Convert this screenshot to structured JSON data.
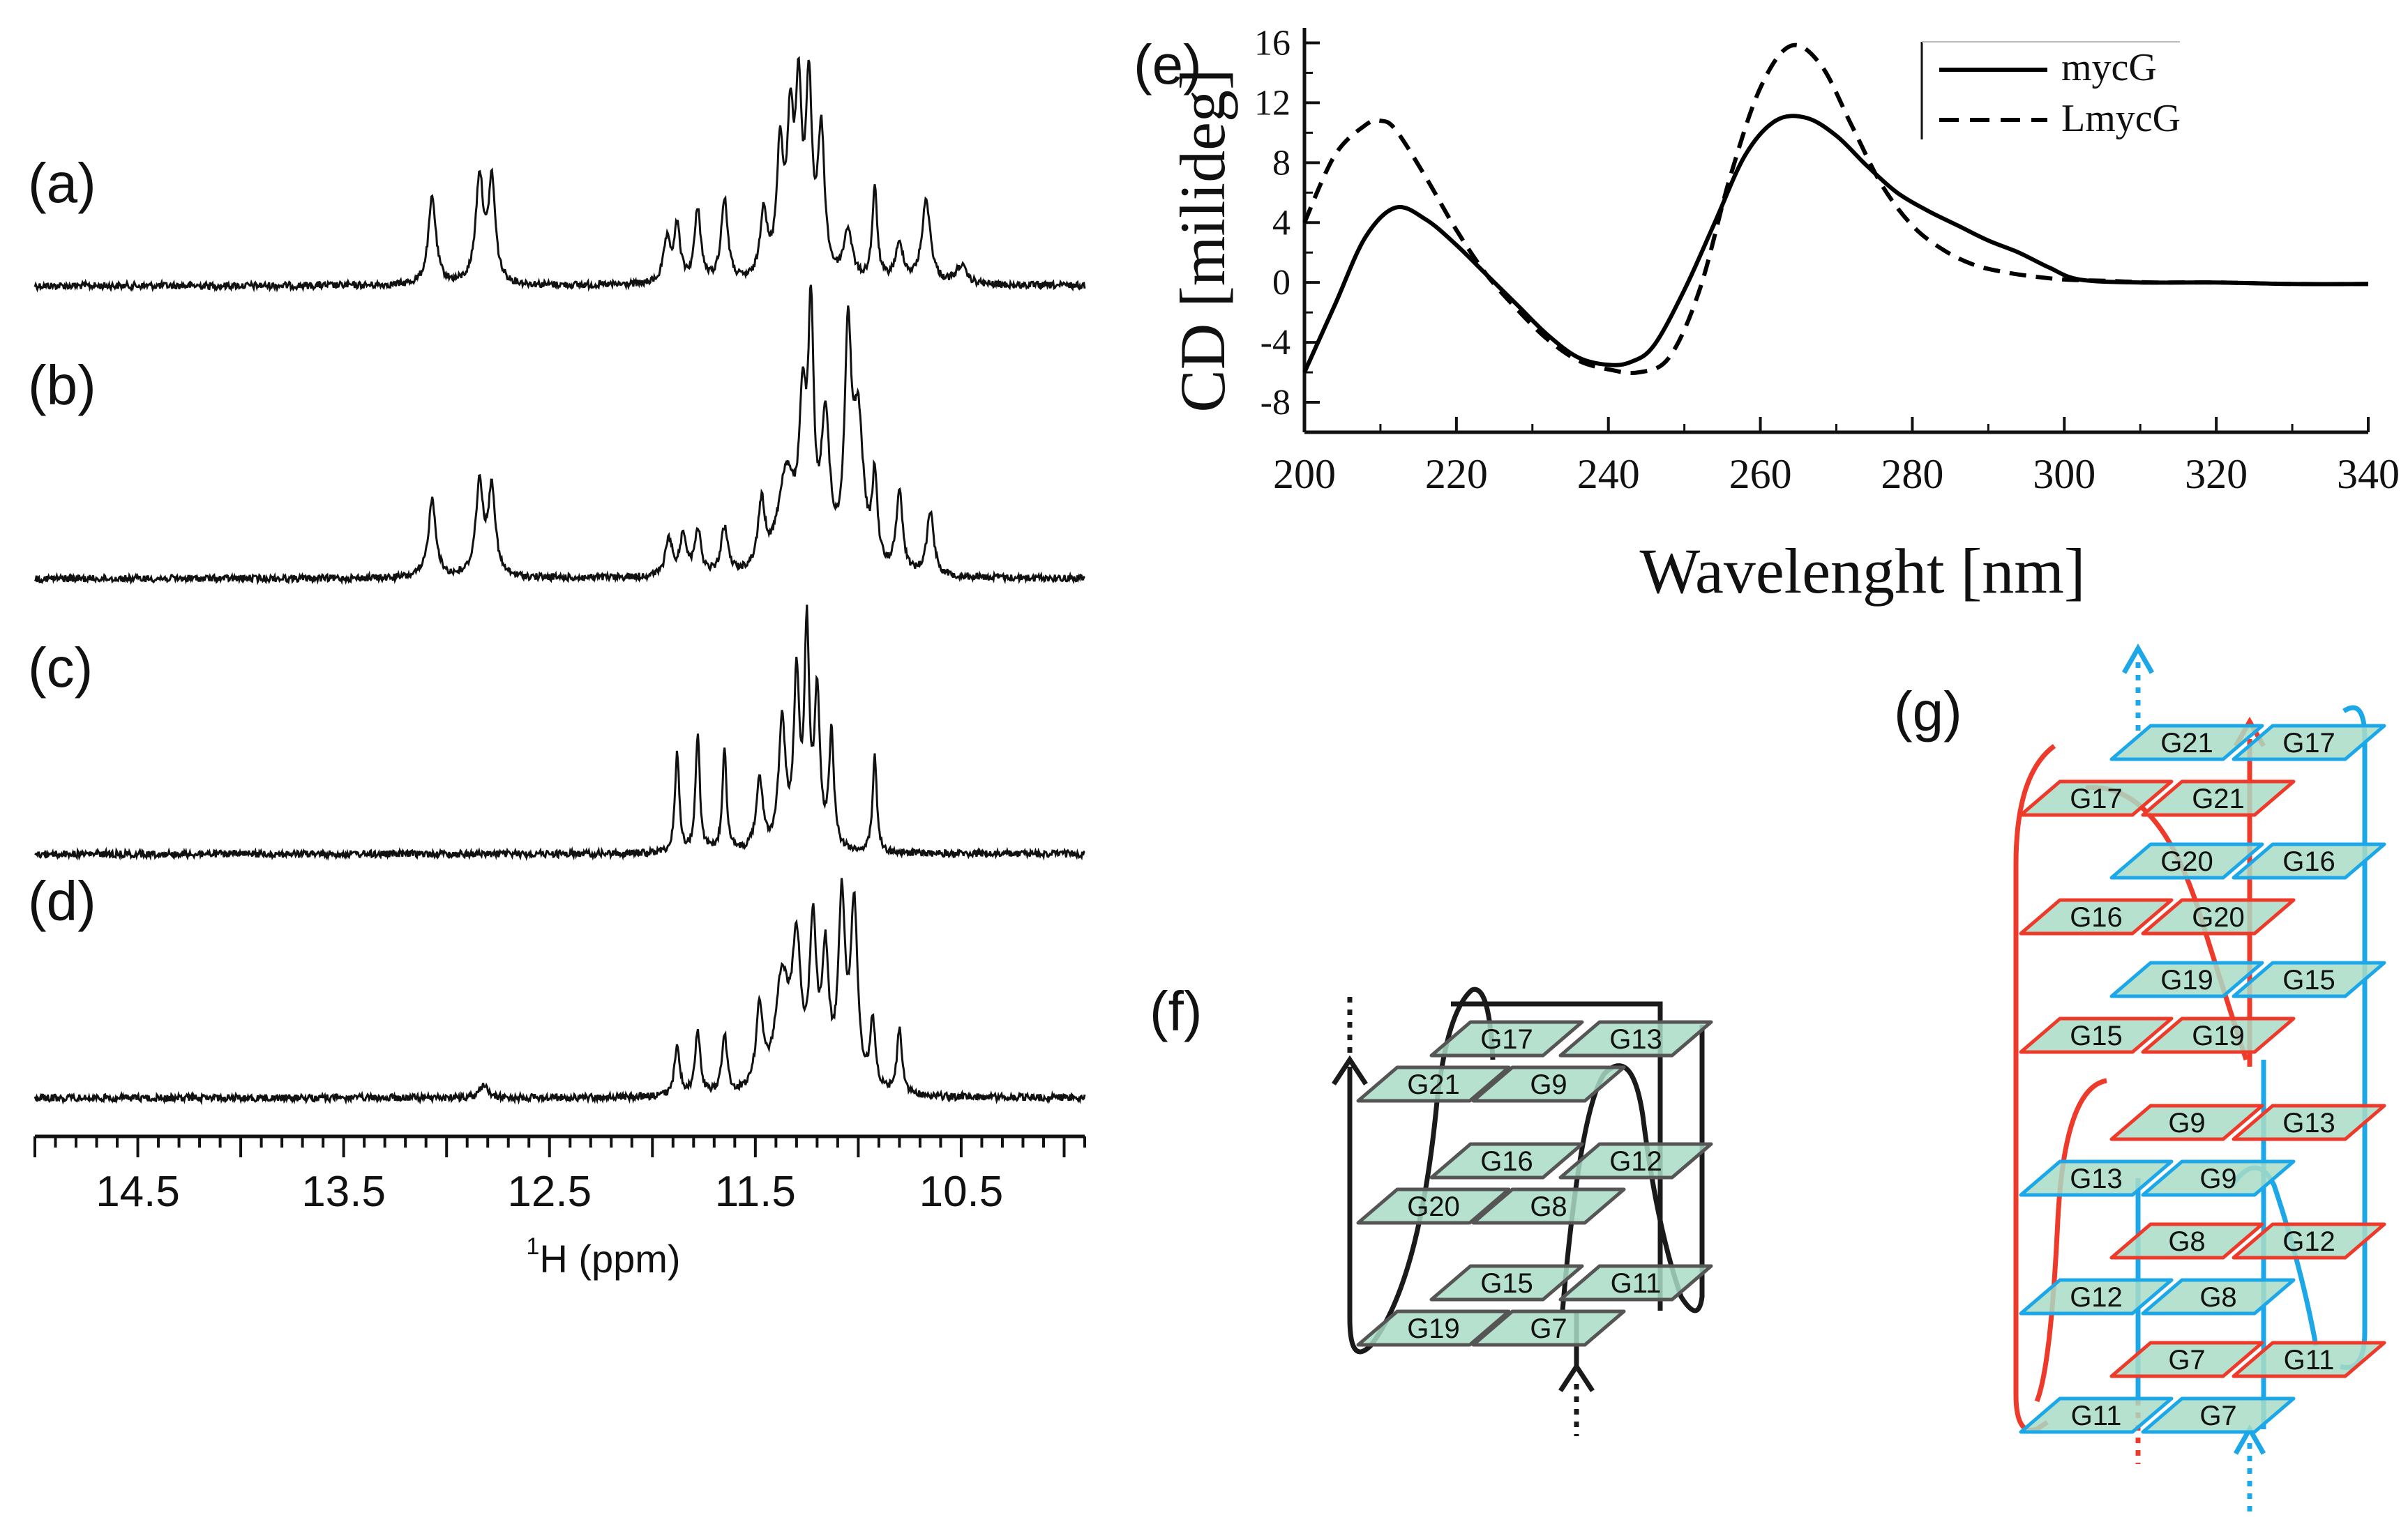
{
  "panels": {
    "a": "(a)",
    "b": "(b)",
    "c": "(c)",
    "d": "(d)",
    "e": "(e)",
    "f": "(f)",
    "g": "(g)"
  },
  "chart_data": [
    {
      "type": "line",
      "id": "nmr",
      "title": "",
      "xlabel_sup": "1",
      "xlabel": "H (ppm)",
      "xlim": [
        15.0,
        9.9
      ],
      "xticks": [
        14.5,
        13.5,
        12.5,
        11.5,
        10.5
      ],
      "x_minor_step": 0.1,
      "series": [
        {
          "name": "(a)",
          "peaks": [
            [
              13.07,
              0.38,
              0.022
            ],
            [
              12.84,
              0.46,
              0.022
            ],
            [
              12.78,
              0.44,
              0.02
            ],
            [
              11.93,
              0.18,
              0.02
            ],
            [
              11.88,
              0.24,
              0.018
            ],
            [
              11.78,
              0.32,
              0.018
            ],
            [
              11.65,
              0.36,
              0.02
            ],
            [
              11.46,
              0.3,
              0.02
            ],
            [
              11.38,
              0.55,
              0.02
            ],
            [
              11.33,
              0.62,
              0.018
            ],
            [
              11.29,
              0.74,
              0.018
            ],
            [
              11.24,
              0.8,
              0.018
            ],
            [
              11.18,
              0.62,
              0.02
            ],
            [
              11.05,
              0.22,
              0.025
            ],
            [
              10.92,
              0.4,
              0.015
            ],
            [
              10.8,
              0.16,
              0.025
            ],
            [
              10.67,
              0.36,
              0.025
            ],
            [
              10.5,
              0.08,
              0.03
            ]
          ]
        },
        {
          "name": "(b)",
          "peaks": [
            [
              13.07,
              0.34,
              0.022
            ],
            [
              12.84,
              0.4,
              0.022
            ],
            [
              12.78,
              0.38,
              0.02
            ],
            [
              11.92,
              0.16,
              0.02
            ],
            [
              11.85,
              0.18,
              0.018
            ],
            [
              11.78,
              0.2,
              0.018
            ],
            [
              11.65,
              0.2,
              0.02
            ],
            [
              11.47,
              0.28,
              0.02
            ],
            [
              11.35,
              0.42,
              0.05
            ],
            [
              11.27,
              0.62,
              0.02
            ],
            [
              11.23,
              1.0,
              0.016
            ],
            [
              11.16,
              0.62,
              0.025
            ],
            [
              11.05,
              0.95,
              0.02
            ],
            [
              11.0,
              0.62,
              0.03
            ],
            [
              10.92,
              0.38,
              0.015
            ],
            [
              10.8,
              0.36,
              0.018
            ],
            [
              10.65,
              0.28,
              0.02
            ]
          ]
        },
        {
          "name": "(c)",
          "peaks": [
            [
              11.88,
              0.44,
              0.012
            ],
            [
              11.78,
              0.52,
              0.012
            ],
            [
              11.65,
              0.46,
              0.012
            ],
            [
              11.48,
              0.3,
              0.02
            ],
            [
              11.37,
              0.55,
              0.02
            ],
            [
              11.3,
              0.72,
              0.016
            ],
            [
              11.25,
              0.92,
              0.014
            ],
            [
              11.2,
              0.66,
              0.016
            ],
            [
              11.13,
              0.5,
              0.014
            ],
            [
              10.92,
              0.42,
              0.012
            ]
          ]
        },
        {
          "name": "(d)",
          "peaks": [
            [
              12.82,
              0.06,
              0.02
            ],
            [
              11.88,
              0.22,
              0.015
            ],
            [
              11.78,
              0.28,
              0.015
            ],
            [
              11.65,
              0.26,
              0.015
            ],
            [
              11.48,
              0.35,
              0.02
            ],
            [
              11.37,
              0.48,
              0.04
            ],
            [
              11.3,
              0.58,
              0.025
            ],
            [
              11.22,
              0.68,
              0.02
            ],
            [
              11.16,
              0.55,
              0.02
            ],
            [
              11.08,
              0.8,
              0.02
            ],
            [
              11.02,
              0.78,
              0.02
            ],
            [
              10.93,
              0.3,
              0.015
            ],
            [
              10.8,
              0.28,
              0.015
            ]
          ]
        }
      ]
    },
    {
      "type": "line",
      "id": "cd",
      "title": "",
      "xlabel": "Wavelenght [nm]",
      "ylabel": "CD [milideg]",
      "xlim": [
        200,
        340
      ],
      "ylim": [
        -10,
        17
      ],
      "xticks": [
        200,
        220,
        240,
        260,
        280,
        300,
        320,
        340
      ],
      "yticks": [
        -8,
        -4,
        0,
        4,
        8,
        12,
        16
      ],
      "legend_position": "top-right",
      "series": [
        {
          "name": "mycG",
          "style": "solid",
          "x": [
            200,
            204,
            208,
            212,
            216,
            220,
            224,
            228,
            232,
            236,
            240,
            243,
            246,
            250,
            254,
            258,
            262,
            266,
            270,
            274,
            278,
            282,
            286,
            290,
            294,
            298,
            302,
            310,
            320,
            330,
            340
          ],
          "y": [
            -6,
            -1.5,
            3,
            5,
            4.2,
            2.5,
            0.5,
            -1.5,
            -3.5,
            -5,
            -5.5,
            -5.3,
            -4.2,
            -0.5,
            4,
            8.5,
            10.8,
            11,
            9.8,
            7.8,
            6,
            4.8,
            3.8,
            2.8,
            2,
            1,
            0.2,
            0,
            0,
            -0.1,
            -0.1
          ]
        },
        {
          "name": "LmycG",
          "style": "dashed",
          "x": [
            200,
            204,
            208,
            210,
            212,
            216,
            220,
            224,
            228,
            232,
            236,
            240,
            244,
            248,
            252,
            256,
            260,
            264,
            268,
            272,
            276,
            280,
            284,
            288,
            292,
            296,
            300,
            306,
            312,
            320,
            330,
            340
          ],
          "y": [
            4,
            8.5,
            10.5,
            10.8,
            10.2,
            7,
            3.5,
            0.5,
            -1.8,
            -3.8,
            -5.2,
            -5.8,
            -6,
            -5,
            -0.5,
            7,
            13,
            15.8,
            14.5,
            10.5,
            6.5,
            3.8,
            2.2,
            1.2,
            0.7,
            0.4,
            0.2,
            0.1,
            0,
            0,
            -0.1,
            -0.1
          ]
        }
      ]
    }
  ],
  "diagram_f": {
    "arrow_color": "#1a1a1a",
    "block_fill": "#a8dcc5",
    "tiers": [
      [
        "G17",
        "G13",
        "G21",
        "G9"
      ],
      [
        "G16",
        "G12",
        "G20",
        "G8"
      ],
      [
        "G15",
        "G11",
        "G19",
        "G7"
      ]
    ]
  },
  "diagram_g": {
    "red": "#ee3a2a",
    "blue": "#1ca8e8",
    "block_fill": "#a8dcc5",
    "upper_tiers": [
      [
        "G21",
        "G17",
        "G17",
        "G21"
      ],
      [
        "G20",
        "G16",
        "G16",
        "G20"
      ],
      [
        "G19",
        "G15",
        "G15",
        "G19"
      ]
    ],
    "lower_tiers": [
      [
        "G9",
        "G13",
        "G13",
        "G9"
      ],
      [
        "G8",
        "G12",
        "G12",
        "G8"
      ],
      [
        "G7",
        "G11",
        "G11",
        "G7"
      ]
    ]
  }
}
